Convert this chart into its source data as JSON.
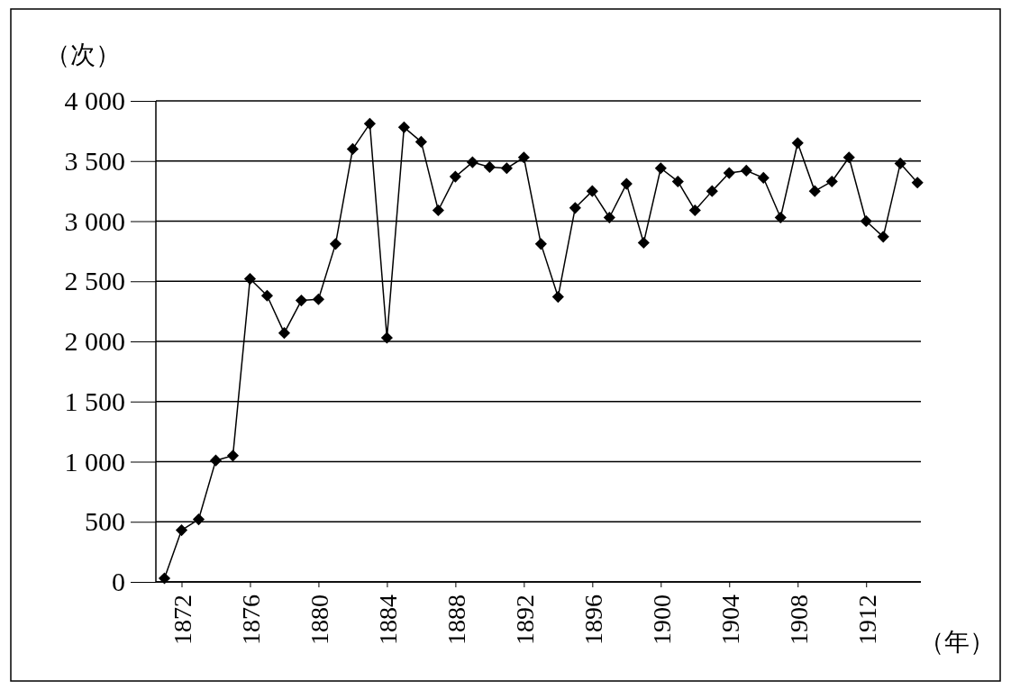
{
  "chart_data": {
    "type": "line",
    "ylabel": "（次）",
    "xlabel": "（年）",
    "x": [
      1871,
      1872,
      1873,
      1874,
      1875,
      1876,
      1877,
      1878,
      1879,
      1880,
      1881,
      1882,
      1883,
      1884,
      1885,
      1886,
      1887,
      1888,
      1889,
      1890,
      1891,
      1892,
      1893,
      1894,
      1895,
      1896,
      1897,
      1898,
      1899,
      1900,
      1901,
      1902,
      1903,
      1904,
      1905,
      1906,
      1907,
      1908,
      1909,
      1910,
      1911,
      1912,
      1913,
      1914,
      1915
    ],
    "series": [
      {
        "color": "#000000",
        "values": [
          30,
          430,
          520,
          1010,
          1050,
          2520,
          2380,
          2070,
          2340,
          2350,
          2810,
          3600,
          3810,
          2030,
          3780,
          3660,
          3090,
          3370,
          3490,
          3450,
          3440,
          3530,
          2810,
          2370,
          3110,
          3250,
          3030,
          3310,
          2820,
          3440,
          3330,
          3090,
          3250,
          3400,
          3420,
          3360,
          3030,
          3650,
          3250,
          3330,
          3530,
          3000,
          2870,
          3480,
          3320
        ]
      }
    ],
    "xlim": [
      1870.5,
      1915.2
    ],
    "xticks": [
      1872,
      1876,
      1880,
      1884,
      1888,
      1892,
      1896,
      1900,
      1904,
      1908,
      1912
    ],
    "ylim": [
      0,
      4000
    ],
    "yticks": [
      0,
      500,
      {
        "value": 1000,
        "label": "1 000"
      },
      {
        "value": 1500,
        "label": "1 500"
      },
      {
        "value": 2000,
        "label": "2 000"
      },
      {
        "value": 2500,
        "label": "2 500"
      },
      {
        "value": 3000,
        "label": "3 000"
      },
      {
        "value": 3500,
        "label": "3 500"
      },
      {
        "value": 4000,
        "label": "4 000"
      }
    ],
    "grid": "y",
    "marker": "diamond",
    "line_style": "solid"
  }
}
